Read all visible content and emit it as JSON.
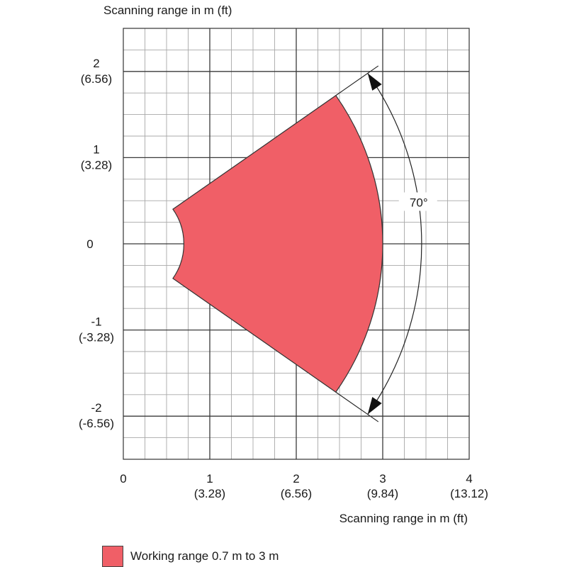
{
  "chart_data": {
    "type": "area",
    "title": "",
    "top_axis_label": "Scanning range in m (ft)",
    "xlabel": "Scanning range in m (ft)",
    "ylabel": "",
    "xlim": [
      0,
      4
    ],
    "ylim": [
      -2.5,
      2.5
    ],
    "x_ticks": [
      {
        "value": 0,
        "label": "0",
        "sublabel": ""
      },
      {
        "value": 1,
        "label": "1",
        "sublabel": "(3.28)"
      },
      {
        "value": 2,
        "label": "2",
        "sublabel": "(6.56)"
      },
      {
        "value": 3,
        "label": "3",
        "sublabel": "(9.84)"
      },
      {
        "value": 4,
        "label": "4",
        "sublabel": "(13.12)"
      }
    ],
    "y_ticks": [
      {
        "value": 2,
        "label": "2",
        "sublabel": "(6.56)"
      },
      {
        "value": 1,
        "label": "1",
        "sublabel": "(3.28)"
      },
      {
        "value": 0,
        "label": "0",
        "sublabel": ""
      },
      {
        "value": -1,
        "label": "-1",
        "sublabel": "(-3.28)"
      },
      {
        "value": -2,
        "label": "-2",
        "sublabel": "(-6.56)"
      }
    ],
    "grid": true,
    "minor_grid_step": 0.25,
    "sector": {
      "inner_radius": 0.7,
      "outer_radius": 3,
      "angle_deg": 70,
      "angle_label": "70°",
      "color": "#f05f67"
    },
    "legend": {
      "position": "bottom-left",
      "label": "Working range 0.7 m to 3 m",
      "color": "#f05f67"
    }
  }
}
